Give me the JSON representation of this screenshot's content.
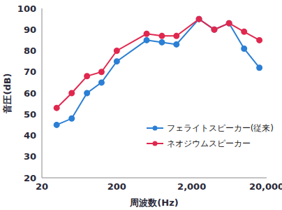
{
  "chart_data": {
    "type": "line",
    "x_label": "周波数(Hz)",
    "y_label": "音圧(dB)",
    "x": [
      31.5,
      50,
      80,
      125,
      200,
      500,
      800,
      1250,
      2500,
      4000,
      6300,
      10000,
      16000
    ],
    "series": [
      {
        "name": "フェライトスピーカー(従来)",
        "color": "#2b7fd4",
        "values": [
          45,
          48,
          60,
          65,
          75,
          85,
          84,
          83,
          95,
          90,
          93,
          81,
          72
        ]
      },
      {
        "name": "ネオジウムスピーカー",
        "color": "#e0284f",
        "values": [
          53,
          60,
          68,
          70,
          80,
          88,
          87,
          87,
          95,
          90,
          93,
          89,
          85
        ]
      }
    ],
    "log": "x",
    "xlim": [
      20,
      20000
    ],
    "xticks": [
      20,
      200,
      {
        "value": 2000,
        "label": "2,000"
      },
      {
        "value": 20000,
        "label": "20,000"
      }
    ],
    "ylim": [
      20,
      100
    ],
    "yticks": [
      20,
      30,
      40,
      50,
      60,
      70,
      80,
      90,
      100
    ],
    "grid": false,
    "legend": "lower right",
    "marker": "circle"
  }
}
